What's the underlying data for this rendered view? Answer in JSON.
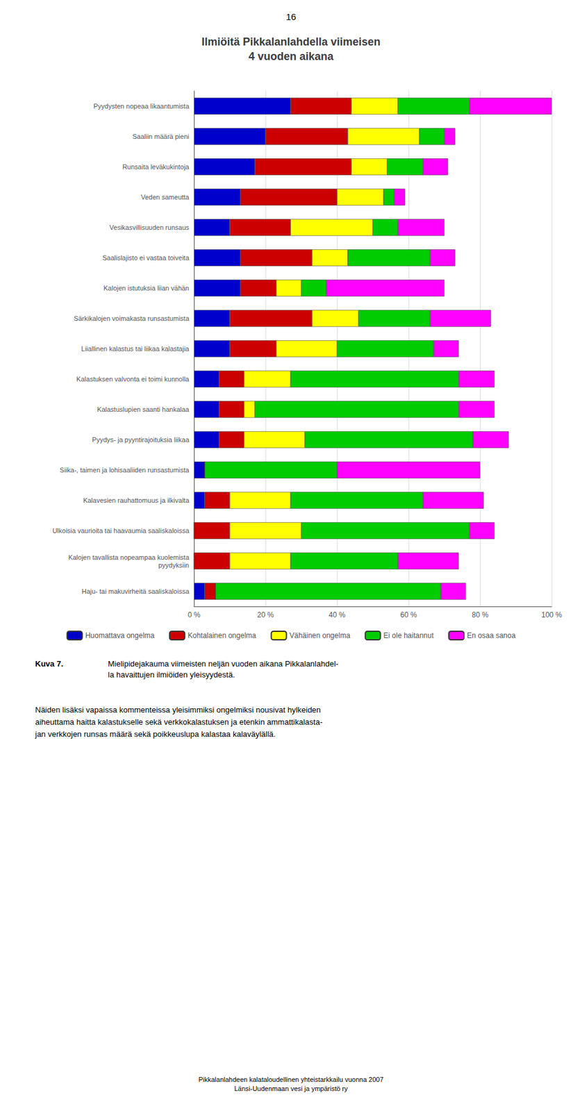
{
  "chart_data": {
    "type": "bar",
    "orientation": "horizontal",
    "stacked": true,
    "title": "Ilmiöitä Pikkalanlahdella viimeisen\n4 vuoden aikana",
    "categories": [
      "Pyydysten nopeaa likaantumista",
      "Saaliin määrä pieni",
      "Runsaita leväkukintoja",
      "Veden sameutta",
      "Vesikasvillisuuden runsaus",
      "Saalislajisto ei vastaa toiveita",
      "Kalojen istutuksia liian vähän",
      "Särkikalojen voimakasta runsastumista",
      "Liiallinen kalastus tai liikaa kalastajia",
      "Kalastuksen valvonta ei toimi kunnolla",
      "Kalastuslupien saanti hankalaa",
      "Pyydys- ja pyyntirajoituksia liikaa",
      "Siika-, taimen ja lohisaaliiden runsastumista",
      "Kalavesien rauhattomuus ja ilkivalta",
      "Ulkoisia vaurioita tai haavaumia saaliskaloissa",
      "Kalojen tavallista nopeampaa kuolemista\npyydyksiin",
      "Haju- tai makuvirheitä saaliskaloissa"
    ],
    "series": [
      {
        "name": "Huomattava ongelma",
        "color": "#0000CC",
        "values": [
          27,
          20,
          17,
          13,
          10,
          13,
          13,
          10,
          10,
          7,
          7,
          7,
          3,
          3,
          0,
          0,
          3
        ]
      },
      {
        "name": "Kohtalainen ongelma",
        "color": "#CC0000",
        "values": [
          17,
          23,
          27,
          27,
          17,
          20,
          10,
          23,
          13,
          7,
          7,
          7,
          0,
          7,
          10,
          10,
          3
        ]
      },
      {
        "name": "Vähäinen ongelma",
        "color": "#FFFF00",
        "values": [
          13,
          20,
          10,
          13,
          23,
          10,
          7,
          13,
          17,
          13,
          3,
          17,
          0,
          17,
          20,
          17,
          0
        ]
      },
      {
        "name": "Ei ole haitannut",
        "color": "#00CC00",
        "values": [
          20,
          7,
          10,
          3,
          7,
          23,
          7,
          20,
          27,
          47,
          57,
          47,
          37,
          37,
          47,
          30,
          63
        ]
      },
      {
        "name": "En osaa sanoa",
        "color": "#FF00FF",
        "values": [
          23,
          3,
          7,
          3,
          13,
          7,
          33,
          17,
          7,
          10,
          10,
          10,
          40,
          17,
          7,
          17,
          7
        ]
      }
    ],
    "xlim": [
      0,
      100
    ],
    "xticks": [
      {
        "value": 0,
        "label": "0 %"
      },
      {
        "value": 20,
        "label": "20 %"
      },
      {
        "value": 40,
        "label": "40 %"
      },
      {
        "value": 60,
        "label": "60 %"
      },
      {
        "value": 80,
        "label": "80 %"
      },
      {
        "value": 100,
        "label": "100 %"
      }
    ],
    "grid": true,
    "legend": "bottom",
    "annotations": [
      "16",
      "Kuva 7.",
      "Mielipidejakauma viimeisten neljän vuoden aikana Pikkalanlahdel-\nla havaittujen ilmiöiden yleisyydestä.",
      "Näiden lisäksi vapaissa kommenteissa yleisimmiksi ongelmiksi nousivat hylkeiden\naiheuttama haitta kalastukselle sekä verkkokalastuksen ja etenkin ammattikalasta-\njan verkkojen runsas määrä sekä poikkeuslupa kalastaa kalaväylällä.",
      "Pikkalanlahdeen kalataloudellinen yhteistarkkailu vuonna 2007\nLänsi-Uudenmaan vesi ja ympäristö ry"
    ]
  }
}
